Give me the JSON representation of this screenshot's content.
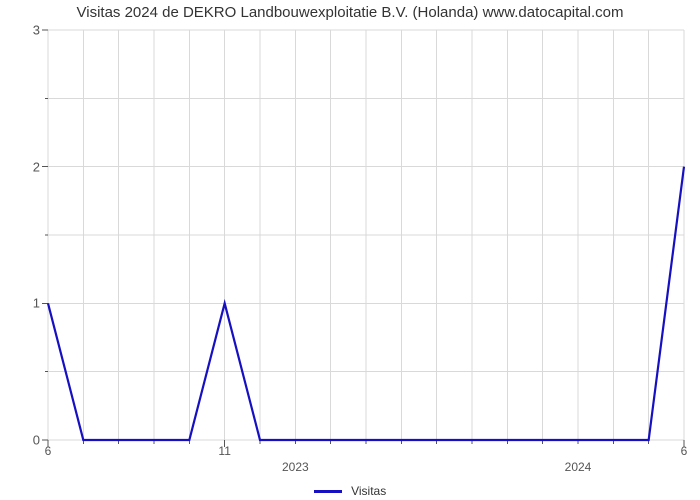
{
  "title": "Visitas 2024 de DEKRO Landbouwexploitatie B.V. (Holanda) www.datocapital.com",
  "chart": {
    "type": "line",
    "background_color": "#ffffff",
    "grid_color": "#d9d9d9",
    "axis_color": "#555555",
    "title_fontsize": 15,
    "tick_fontsize": 12,
    "series": {
      "label": "Visitas",
      "color": "#1610c2",
      "line_width": 2.2,
      "x": [
        0,
        1,
        2,
        3,
        4,
        5,
        6,
        7,
        8,
        9,
        10,
        11,
        12,
        13,
        14,
        15,
        16,
        17,
        18
      ],
      "y": [
        1,
        0,
        0,
        0,
        0,
        1,
        0,
        0,
        0,
        0,
        0,
        0,
        0,
        0,
        0,
        0,
        0,
        0,
        2
      ]
    },
    "ylim": [
      0,
      3
    ],
    "y_major_ticks": [
      0,
      1,
      2,
      3
    ],
    "y_minor_half_ticks": true,
    "x_index_range": [
      0,
      18
    ],
    "x_minor_tick_every": 1,
    "x_major": [
      {
        "index": 0,
        "label": "6"
      },
      {
        "index": 5,
        "label": "11"
      },
      {
        "index": 18,
        "label": "6"
      }
    ],
    "x_year_labels": [
      {
        "center_index": 7,
        "label": "2023"
      },
      {
        "center_index": 15,
        "label": "2024"
      }
    ]
  },
  "legend": {
    "swatch_color": "#1610c2",
    "label": "Visitas"
  }
}
